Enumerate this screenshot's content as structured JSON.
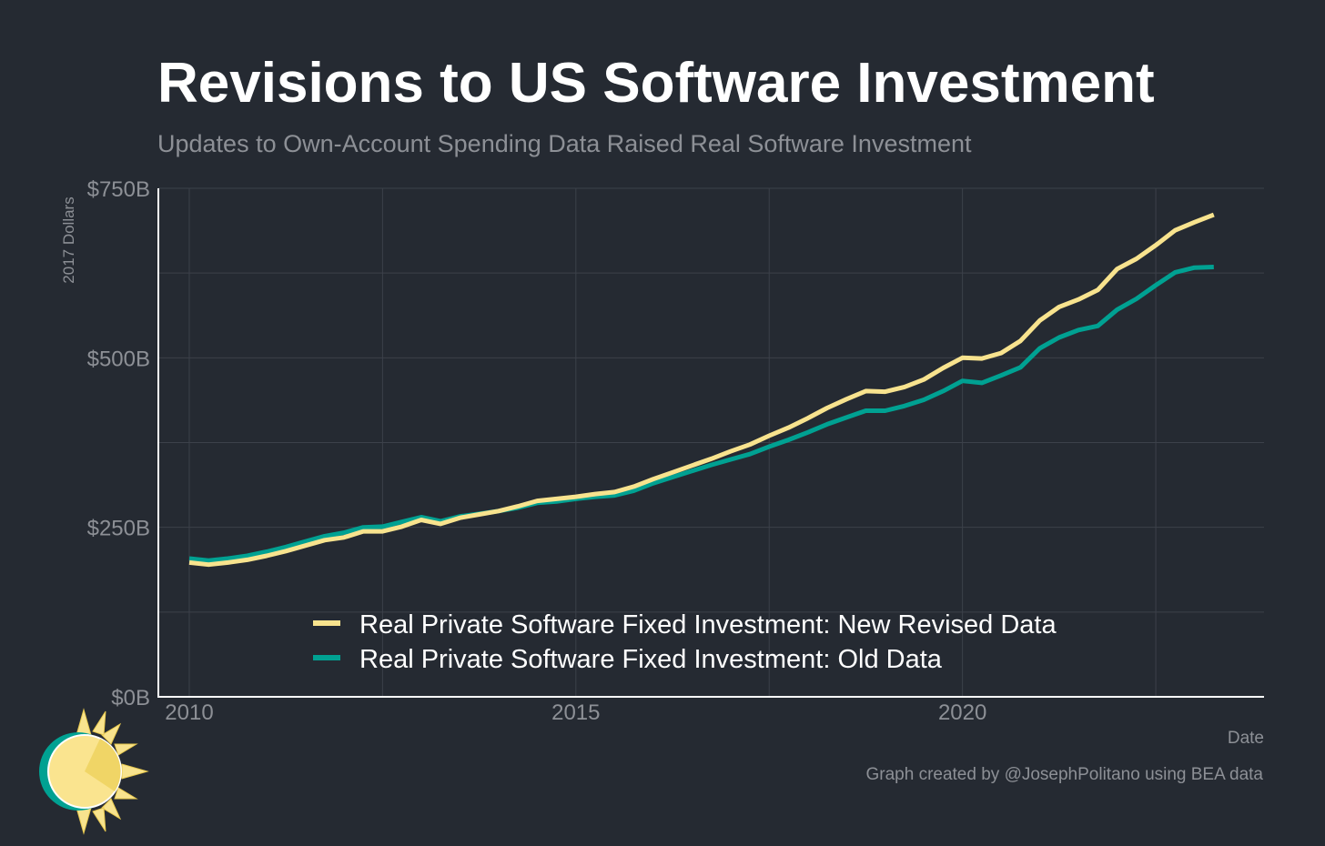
{
  "title": "Revisions to US Software Investment",
  "subtitle": "Updates to Own-Account Spending Data Raised Real Software Investment",
  "credit": "Graph created by @JosephPolitano using BEA data",
  "logo": "sun-logo",
  "colors": {
    "background": "#252a32",
    "new_series": "#f8e38e",
    "old_series": "#00a192",
    "grid": "#3c414a",
    "axis_text": "#8d9096"
  },
  "chart_data": {
    "type": "line",
    "xlabel": "Date",
    "ylabel": "2017 Dollars",
    "xlim": [
      2009.6,
      2023.9
    ],
    "ylim": [
      0,
      750
    ],
    "x_ticks": [
      2010,
      2015,
      2020
    ],
    "x_tick_labels": [
      "2010",
      "2015",
      "2020"
    ],
    "y_ticks": [
      0,
      250,
      500,
      750
    ],
    "y_tick_labels": [
      "$0B",
      "$250B",
      "$500B",
      "$750B"
    ],
    "grid": true,
    "legend_position": "bottom-center",
    "x": [
      2010.0,
      2010.25,
      2010.5,
      2010.75,
      2011.0,
      2011.25,
      2011.5,
      2011.75,
      2012.0,
      2012.25,
      2012.5,
      2012.75,
      2013.0,
      2013.25,
      2013.5,
      2013.75,
      2014.0,
      2014.25,
      2014.5,
      2014.75,
      2015.0,
      2015.25,
      2015.5,
      2015.75,
      2016.0,
      2016.25,
      2016.5,
      2016.75,
      2017.0,
      2017.25,
      2017.5,
      2017.75,
      2018.0,
      2018.25,
      2018.5,
      2018.75,
      2019.0,
      2019.25,
      2019.5,
      2019.75,
      2020.0,
      2020.25,
      2020.5,
      2020.75,
      2021.0,
      2021.25,
      2021.5,
      2021.75,
      2022.0,
      2022.25,
      2022.5,
      2022.75,
      2023.0,
      2023.25
    ],
    "series": [
      {
        "name": "Real Private Software Fixed Investment: New Revised Data",
        "color": "#f8e38e",
        "values": [
          198,
          195,
          198,
          202,
          208,
          215,
          223,
          231,
          235,
          244,
          244,
          251,
          261,
          255,
          264,
          269,
          274,
          281,
          289,
          292,
          295,
          299,
          302,
          310,
          321,
          331,
          341,
          351,
          362,
          372,
          385,
          397,
          411,
          426,
          439,
          451,
          450,
          457,
          468,
          485,
          500,
          499,
          507,
          525,
          555,
          575,
          586,
          600,
          631,
          646,
          666,
          688,
          700,
          711
        ]
      },
      {
        "name": "Real Private Software Fixed Investment: Old Data",
        "color": "#00a192",
        "values": [
          204,
          201,
          204,
          208,
          214,
          221,
          229,
          237,
          242,
          250,
          251,
          258,
          265,
          259,
          266,
          270,
          274,
          279,
          286,
          288,
          292,
          295,
          297,
          304,
          315,
          324,
          333,
          342,
          350,
          358,
          369,
          379,
          390,
          402,
          412,
          422,
          422,
          429,
          438,
          451,
          466,
          463,
          474,
          486,
          514,
          530,
          541,
          547,
          571,
          587,
          607,
          626,
          633,
          634
        ]
      }
    ]
  }
}
